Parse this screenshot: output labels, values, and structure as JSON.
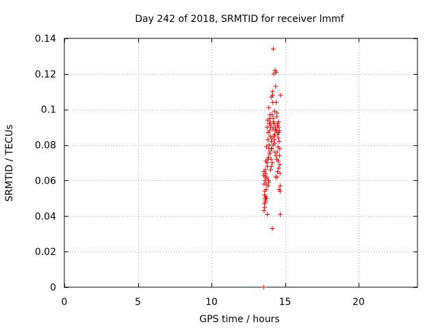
{
  "chart_data": {
    "type": "scatter",
    "title": "Day 242 of 2018, SRMTID for receiver lmmf",
    "xlabel": "GPS time / hours",
    "ylabel": "SRMTID / TECUs",
    "xlim": [
      0,
      24
    ],
    "ylim": [
      0,
      0.14
    ],
    "xticks": [
      0,
      5,
      10,
      15,
      20
    ],
    "yticks": [
      0,
      0.02,
      0.04,
      0.06,
      0.08,
      0.1,
      0.12,
      0.14
    ],
    "xtick_labels": [
      "0",
      "5",
      "10",
      "15",
      "20"
    ],
    "ytick_labels": [
      "0",
      "0.02",
      "0.04",
      "0.06",
      "0.08",
      "0.1",
      "0.12",
      "0.14"
    ],
    "grid": true,
    "marker_color": "#e00000",
    "marker": "plus",
    "series": [
      {
        "name": "SRMTID",
        "x": [
          13.55,
          13.56,
          13.58,
          13.6,
          13.62,
          13.64,
          13.65,
          13.66,
          13.68,
          13.7,
          13.72,
          13.74,
          13.76,
          13.78,
          13.8,
          13.82,
          13.84,
          13.86,
          13.88,
          13.9,
          13.92,
          13.94,
          13.96,
          13.98,
          14.0,
          14.02,
          14.04,
          14.06,
          14.08,
          14.1,
          14.12,
          14.14,
          14.16,
          14.18,
          14.2,
          14.22,
          14.24,
          14.26,
          14.28,
          14.3,
          14.32,
          14.34,
          14.36,
          14.38,
          14.4,
          14.42,
          14.44,
          14.46,
          14.48,
          14.5,
          14.52,
          14.54,
          14.56,
          14.58,
          14.6,
          14.62,
          14.64,
          14.66,
          14.68,
          14.7,
          13.58,
          13.62,
          13.68,
          13.72,
          13.78,
          13.84,
          13.9,
          13.96,
          14.02,
          14.08,
          14.14,
          14.2,
          14.26,
          14.32,
          14.38,
          14.44,
          14.5,
          14.56,
          14.62,
          14.68,
          13.6,
          13.7,
          13.8,
          13.9,
          14.0,
          14.1,
          14.2,
          14.3,
          14.4,
          14.5,
          14.6,
          13.65,
          13.75,
          13.85,
          13.95,
          14.05,
          14.15,
          14.25,
          14.35,
          14.45,
          14.55,
          14.65,
          13.57,
          13.67,
          13.77,
          13.87,
          13.97,
          14.07,
          14.17,
          14.27,
          14.37,
          14.47,
          14.57,
          14.67
        ],
        "y": [
          0.0,
          0.063,
          0.058,
          0.052,
          0.045,
          0.06,
          0.05,
          0.066,
          0.048,
          0.071,
          0.055,
          0.079,
          0.062,
          0.09,
          0.068,
          0.094,
          0.072,
          0.087,
          0.06,
          0.101,
          0.08,
          0.092,
          0.075,
          0.097,
          0.085,
          0.066,
          0.091,
          0.078,
          0.107,
          0.084,
          0.097,
          0.07,
          0.108,
          0.089,
          0.134,
          0.093,
          0.12,
          0.085,
          0.099,
          0.081,
          0.122,
          0.09,
          0.113,
          0.074,
          0.104,
          0.088,
          0.096,
          0.062,
          0.092,
          0.086,
          0.079,
          0.071,
          0.09,
          0.067,
          0.082,
          0.088,
          0.078,
          0.064,
          0.057,
          0.108,
          0.043,
          0.054,
          0.064,
          0.058,
          0.07,
          0.083,
          0.078,
          0.095,
          0.09,
          0.068,
          0.033,
          0.095,
          0.092,
          0.076,
          0.088,
          0.072,
          0.065,
          0.087,
          0.074,
          0.041,
          0.047,
          0.051,
          0.041,
          0.059,
          0.093,
          0.078,
          0.08,
          0.086,
          0.121,
          0.091,
          0.055,
          0.062,
          0.05,
          0.057,
          0.088,
          0.072,
          0.11,
          0.085,
          0.089,
          0.098,
          0.084,
          0.069,
          0.065,
          0.049,
          0.061,
          0.073,
          0.076,
          0.082,
          0.104,
          0.083,
          0.062,
          0.076,
          0.093,
          0.054
        ]
      }
    ]
  }
}
